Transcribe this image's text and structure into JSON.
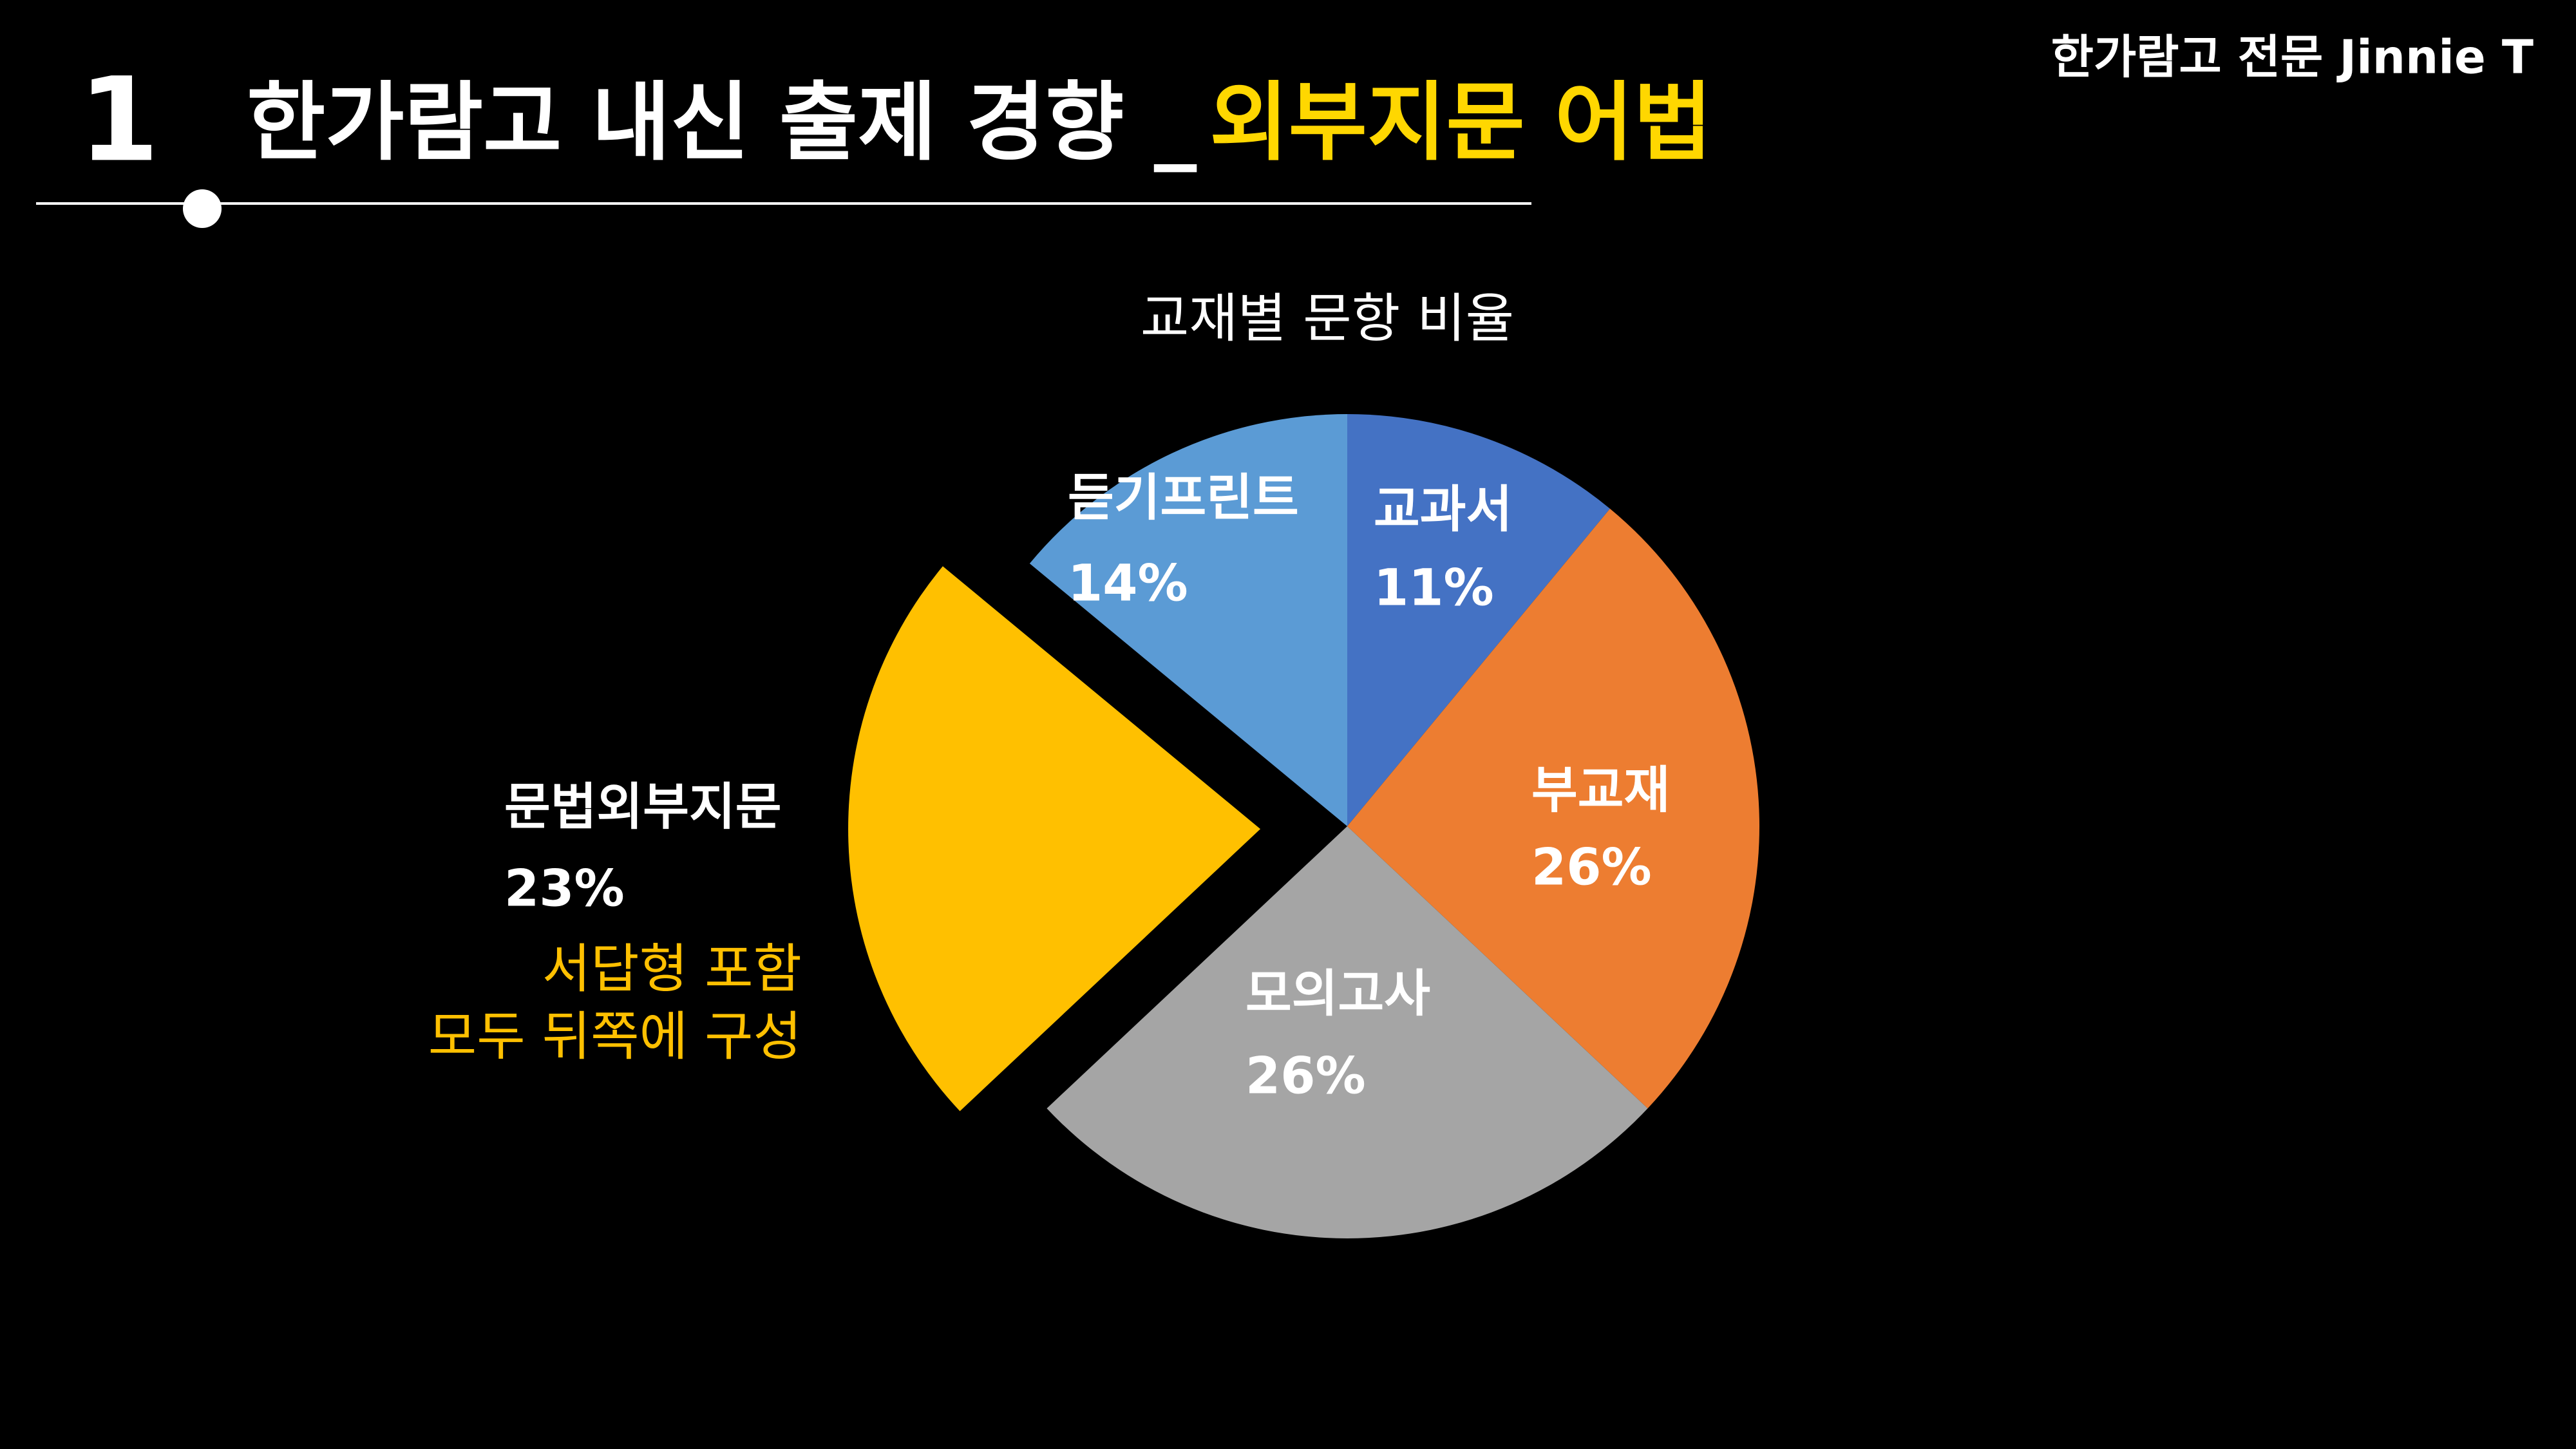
{
  "header": {
    "number": "1",
    "title": "한가람고 내신 출제 경향 _",
    "title_highlight": "외부지문 어법",
    "author": "한가람고 전문 Jinnie T"
  },
  "chart_data": {
    "type": "pie",
    "title": "교재별 문항 비율",
    "categories": [
      "교과서",
      "부교재",
      "모의고사",
      "문법외부지문",
      "듣기프린트"
    ],
    "values": [
      11,
      26,
      26,
      23,
      14
    ],
    "value_labels": [
      "11%",
      "26%",
      "26%",
      "23%",
      "14%"
    ],
    "colors": [
      "#4472c4",
      "#ed7d31",
      "#a5a5a5",
      "#ffc000",
      "#5b9bd5"
    ],
    "exploded": "문법외부지문",
    "annotations": [
      "서답형 포함",
      "모두 뒤쪽에 구성"
    ]
  }
}
